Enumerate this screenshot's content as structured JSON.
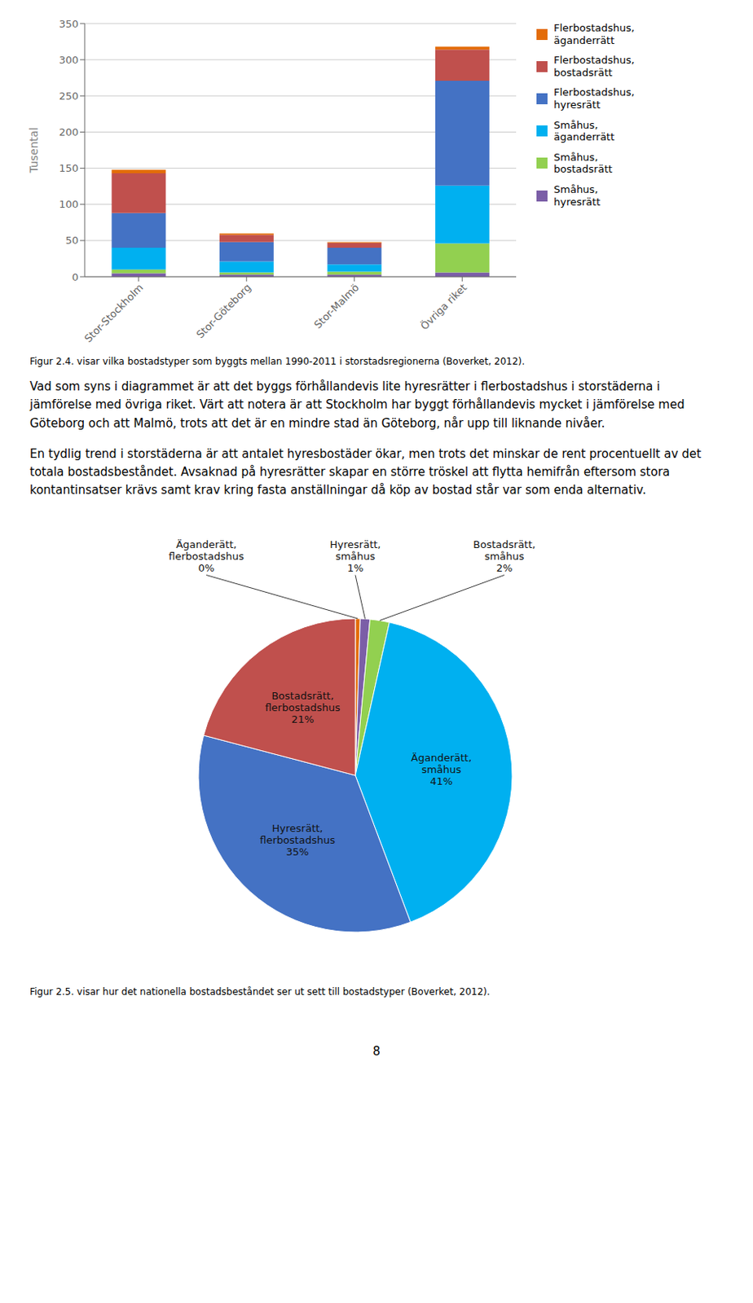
{
  "chart_data": [
    {
      "type": "bar",
      "stacked": true,
      "categories": [
        "Stor-Stockholm",
        "Stor-Göteborg",
        "Stor-Malmö",
        "Övriga riket"
      ],
      "series": [
        {
          "name": "Småhus,\nhyresrätt",
          "color": "#7B5EA7",
          "values": [
            5,
            3,
            3,
            6
          ]
        },
        {
          "name": "Småhus,\nbostadsrätt",
          "color": "#92D050",
          "values": [
            5,
            3,
            4,
            40
          ]
        },
        {
          "name": "Småhus,\näganderrätt",
          "color": "#00B0F0",
          "values": [
            30,
            15,
            10,
            80
          ]
        },
        {
          "name": "Flerbostadshus,\nhyresrätt",
          "color": "#4472C4",
          "values": [
            48,
            27,
            23,
            145
          ]
        },
        {
          "name": "Flerbostadshus,\nbostadsrätt",
          "color": "#C0504D",
          "values": [
            55,
            10,
            7,
            43
          ]
        },
        {
          "name": "Flerbostadshus,\näganderrätt",
          "color": "#E36C09",
          "values": [
            5,
            2,
            1,
            4
          ]
        }
      ],
      "y_label": "Tusental",
      "ylim": [
        0,
        350
      ],
      "yticks": [
        0,
        50,
        100,
        150,
        200,
        250,
        300,
        350
      ],
      "grid": true,
      "legend": "right",
      "caption": "Figur 2.4. visar vilka bostadstyper som byggts mellan 1990-2011 i storstadsregionerna (Boverket, 2012)."
    },
    {
      "type": "pie",
      "categories": [
        "Äganderätt,\nflerbostadshus",
        "Hyresrätt,\nsmåhus",
        "Bostadsrätt,\nsmåhus",
        "Äganderätt,\nsmåhus",
        "Hyresrätt,\nflerbostadshus",
        "Bostadsrätt,\nflerbostadshus"
      ],
      "values": [
        0.5,
        1.0,
        2.0,
        41.0,
        35.0,
        21.0
      ],
      "value_labels": [
        "0%",
        "1%",
        "2%",
        "41%",
        "35%",
        "21%"
      ],
      "colors": [
        "#E36C09",
        "#7B5EA7",
        "#92D050",
        "#00B0F0",
        "#4472C4",
        "#C0504D"
      ],
      "data_labels": true,
      "caption": "Figur 2.5. visar hur det nationella bostadsbeståndet ser ut sett till bostadstyper (Boverket, 2012)."
    }
  ],
  "paragraphs": [
    "Vad som syns i diagrammet är att det byggs förhållandevis lite hyresrätter i flerbostadshus i storstäderna i jämförelse med övriga riket. Värt att notera är att Stockholm har byggt förhållandevis mycket i jämförelse med Göteborg och att Malmö, trots att det är en mindre stad än Göteborg, når upp till liknande nivåer.",
    "En tydlig trend i storstäderna är att antalet hyresbostäder ökar, men trots det minskar de rent procentuellt av det totala bostadsbeståndet. Avsaknad på hyresrätter skapar en större tröskel att flytta hemifrån eftersom stora kontantinsatser krävs samt krav kring fasta anställningar då köp av bostad står var som enda alternativ."
  ],
  "page_number": "8"
}
